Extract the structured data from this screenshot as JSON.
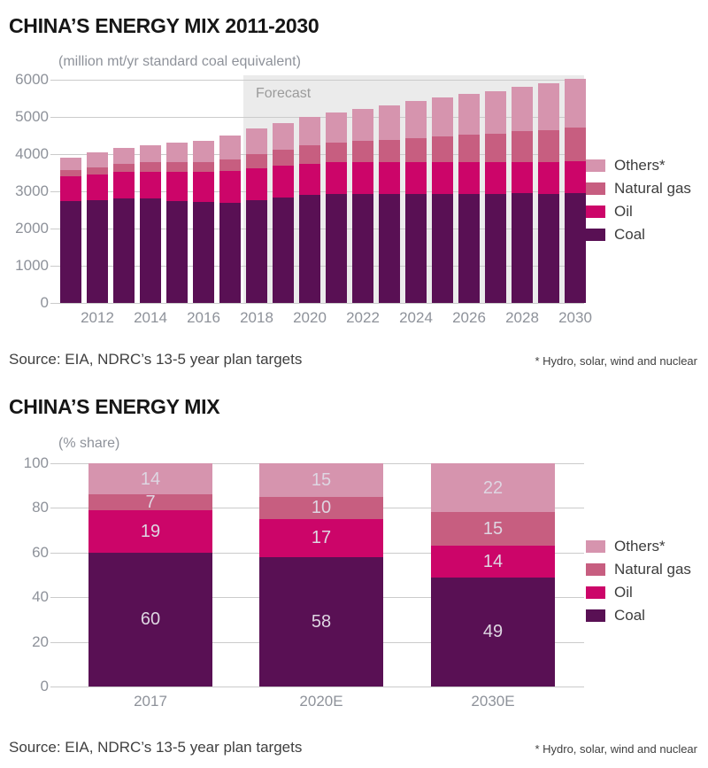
{
  "colors": {
    "coal": "#591054",
    "oil": "#cc0569",
    "natural_gas": "#c75e80",
    "others": "#d694ae",
    "forecast_bg": "#ebebeb",
    "forecast_label": "#9b9b9b",
    "grid": "#cbcbcb",
    "axis_label": "#8e929a",
    "legend_label": "#3d3d3d",
    "title": "#161616",
    "source": "#3f3f3f",
    "value_label": "#ded6e2",
    "background": "#ffffff"
  },
  "chart_data": [
    {
      "id": "china-energy-mix-absolute",
      "type": "bar",
      "stacked": true,
      "title": "CHINA’S ENERGY MIX 2011-2030",
      "subtitle": "(million mt/yr standard coal equivalent)",
      "categories": [
        "2011",
        "2012",
        "2013",
        "2014",
        "2015",
        "2016",
        "2017",
        "2018",
        "2019",
        "2020",
        "2021",
        "2022",
        "2023",
        "2024",
        "2025",
        "2026",
        "2027",
        "2028",
        "2029",
        "2030"
      ],
      "x_tick_labels": [
        "2012",
        "2014",
        "2016",
        "2018",
        "2020",
        "2022",
        "2024",
        "2026",
        "2028",
        "2030"
      ],
      "series": [
        {
          "name": "Coal",
          "color_key": "coal",
          "values": [
            2740,
            2770,
            2810,
            2800,
            2745,
            2705,
            2695,
            2760,
            2830,
            2900,
            2925,
            2925,
            2925,
            2930,
            2925,
            2935,
            2930,
            2945,
            2940,
            2955
          ]
        },
        {
          "name": "Oil",
          "color_key": "oil",
          "values": [
            655,
            685,
            715,
            735,
            790,
            815,
            855,
            865,
            860,
            850,
            855,
            855,
            855,
            855,
            855,
            855,
            850,
            850,
            845,
            845
          ]
        },
        {
          "name": "Natural gas",
          "color_key": "natural_gas",
          "values": [
            180,
            195,
            220,
            240,
            250,
            270,
            315,
            375,
            435,
            500,
            540,
            575,
            610,
            650,
            690,
            730,
            770,
            815,
            855,
            905
          ]
        },
        {
          "name": "Others*",
          "color_key": "others",
          "values": [
            325,
            390,
            425,
            475,
            515,
            570,
            625,
            680,
            715,
            750,
            810,
            865,
            930,
            985,
            1050,
            1100,
            1150,
            1210,
            1260,
            1325
          ]
        }
      ],
      "ylim": [
        0,
        6000
      ],
      "yticks": [
        0,
        1000,
        2000,
        3000,
        4000,
        5000,
        6000
      ],
      "grid": true,
      "legend_position": "right",
      "legend": [
        "Others*",
        "Natural gas",
        "Oil",
        "Coal"
      ],
      "forecast": {
        "label": "Forecast",
        "start_category": "2018"
      },
      "source": "Source: EIA, NDRC’s 13-5 year plan targets",
      "footnote": "* Hydro, solar, wind and nuclear"
    },
    {
      "id": "china-energy-mix-share",
      "type": "bar",
      "stacked": true,
      "percent": true,
      "title": "CHINA’S ENERGY MIX",
      "subtitle": "(% share)",
      "categories": [
        "2017",
        "2020E",
        "2030E"
      ],
      "series": [
        {
          "name": "Coal",
          "color_key": "coal",
          "values": [
            60,
            58,
            49
          ]
        },
        {
          "name": "Oil",
          "color_key": "oil",
          "values": [
            19,
            17,
            14
          ]
        },
        {
          "name": "Natural gas",
          "color_key": "natural_gas",
          "values": [
            7,
            10,
            15
          ]
        },
        {
          "name": "Others*",
          "color_key": "others",
          "values": [
            14,
            15,
            22
          ]
        }
      ],
      "ylim": [
        0,
        100
      ],
      "yticks": [
        0,
        20,
        40,
        60,
        80,
        100
      ],
      "grid": true,
      "show_value_labels": true,
      "legend_position": "right",
      "legend": [
        "Others*",
        "Natural gas",
        "Oil",
        "Coal"
      ],
      "source": "Source: EIA, NDRC’s 13-5 year plan targets",
      "footnote": "* Hydro, solar, wind and nuclear"
    }
  ]
}
